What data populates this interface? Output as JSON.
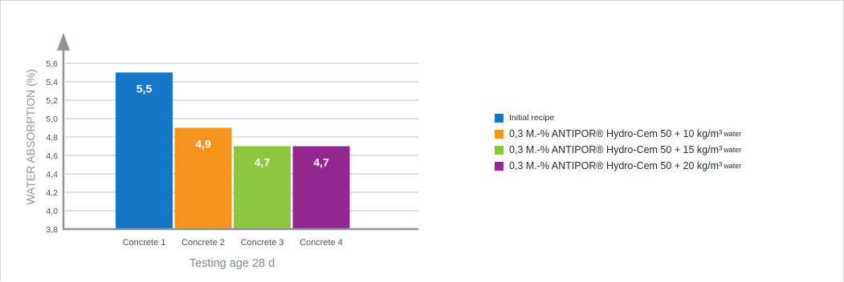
{
  "chart_data": {
    "type": "bar",
    "categories": [
      "Concrete 1",
      "Concrete 2",
      "Concrete 3",
      "Concrete 4"
    ],
    "values": [
      5.5,
      4.9,
      4.7,
      4.7
    ],
    "value_labels": [
      "5,5",
      "4,9",
      "4,7",
      "4,7"
    ],
    "colors": [
      "#1677c6",
      "#f7941d",
      "#8dc63f",
      "#93278f"
    ],
    "xlabel": "Testing age 28 d",
    "ylabel": "WATER ABSORPTION (%)",
    "ylim": [
      3.8,
      5.6
    ],
    "yticks": [
      3.8,
      4.0,
      4.2,
      4.4,
      4.6,
      4.8,
      5.0,
      5.2,
      5.4,
      5.6
    ],
    "ytick_labels": [
      "3,8",
      "4,0",
      "4,2",
      "4,4",
      "4,6",
      "4,8",
      "5,0",
      "5,2",
      "5,4",
      "5,6"
    ],
    "grid": true,
    "legend_position": "right",
    "legend": [
      {
        "label": "Initial recipe",
        "color": "#1677c6"
      },
      {
        "label": "0,3 M.-% ANTIPOR® Hydro-Cem 50 + 10 kg/m³",
        "sub": "water",
        "color": "#f7941d"
      },
      {
        "label": "0,3 M.-% ANTIPOR® Hydro-Cem 50 + 15 kg/m³",
        "sub": "water",
        "color": "#8dc63f"
      },
      {
        "label": "0,3 M.-% ANTIPOR® Hydro-Cem 50 + 20 kg/m³",
        "sub": "water",
        "color": "#93278f"
      }
    ]
  }
}
